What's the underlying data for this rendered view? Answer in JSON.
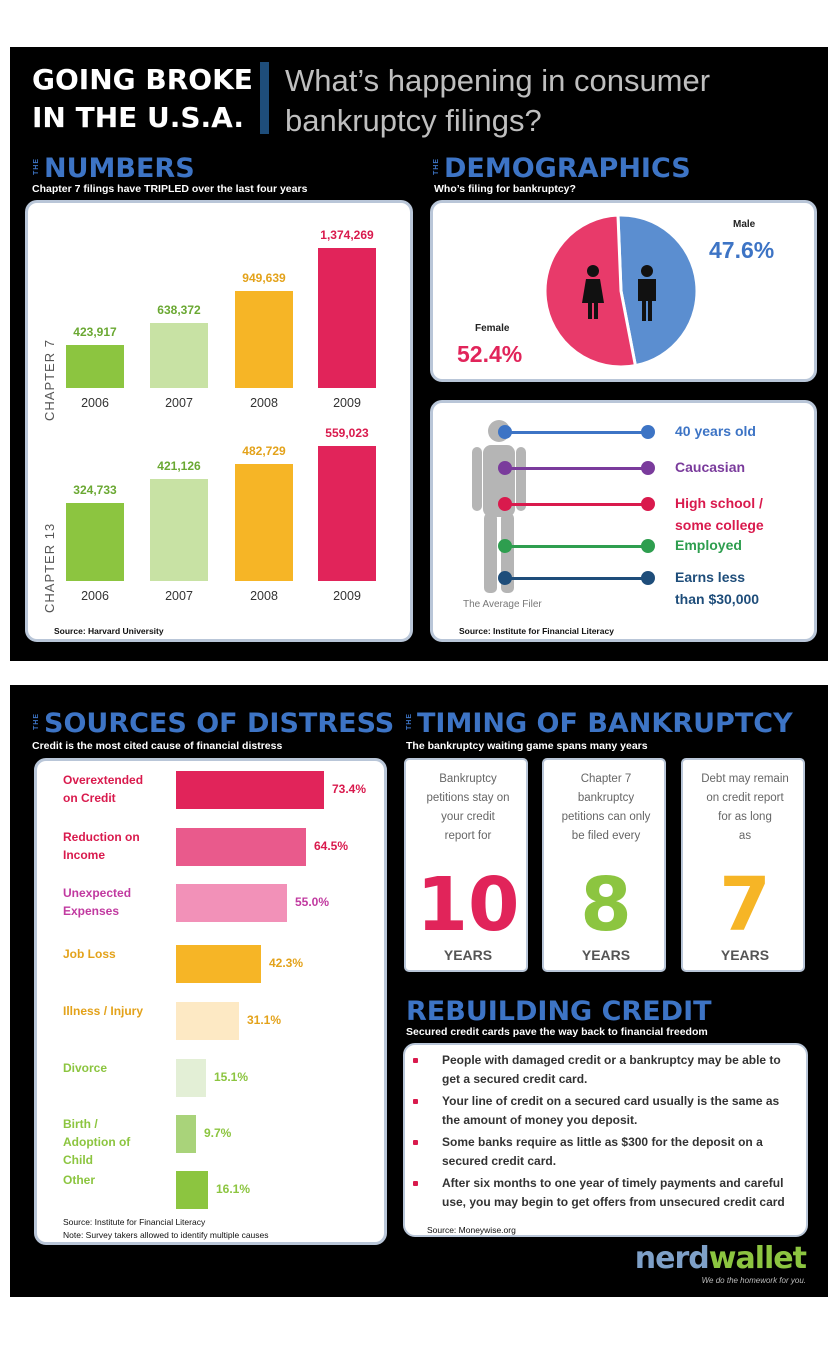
{
  "header": {
    "title_line1": "GOING BROKE",
    "title_line2": "IN THE U.S.A.",
    "subtitle_line1": "What’s happening in consumer",
    "subtitle_line2": "bankruptcy filings?"
  },
  "numbers": {
    "the": "THE",
    "title": "NUMBERS",
    "subtitle": "Chapter 7 filings have TRIPLED over the last four years",
    "source": "Source: Harvard University"
  },
  "demographics": {
    "the": "THE",
    "title": "DEMOGRAPHICS",
    "subtitle": "Who’s filing for bankruptcy?",
    "male_label": "Male",
    "male_pct": "47.6%",
    "female_label": "Female",
    "female_pct": "52.4%",
    "filer_caption": "The Average Filer",
    "source": "Source: Institute for Financial Literacy",
    "filer_traits": [
      {
        "l1": "40 years old",
        "l2": "",
        "color": "#3d74c5"
      },
      {
        "l1": "Caucasian",
        "l2": "",
        "color": "#7a3b9c"
      },
      {
        "l1": "High school /",
        "l2": "some college",
        "color": "#d91a4d"
      },
      {
        "l1": "Employed",
        "l2": "",
        "color": "#2e9e4f"
      },
      {
        "l1": "Earns less",
        "l2": "than $30,000",
        "color": "#1e4d7a"
      }
    ]
  },
  "distress": {
    "the": "THE",
    "title": "SOURCES OF DISTRESS",
    "subtitle": "Credit is the most cited cause of financial distress",
    "source1": "Source: Institute for Financial Literacy",
    "source2": "Note: Survey takers allowed to identify multiple causes"
  },
  "timing": {
    "the": "THE",
    "title": "TIMING OF BANKRUPTCY",
    "subtitle": "The bankruptcy waiting game spans many years",
    "cards": [
      {
        "desc": [
          "Bankruptcy",
          "petitions stay on",
          "your credit",
          "report for"
        ],
        "number": "10",
        "unit": "YEARS",
        "color": "#e1245a"
      },
      {
        "desc": [
          "Chapter 7",
          "bankruptcy",
          "petitions can only",
          "be filed every"
        ],
        "number": "8",
        "unit": "YEARS",
        "color": "#8cc540"
      },
      {
        "desc": [
          "Debt may remain",
          "on credit report",
          "for as long",
          "as"
        ],
        "number": "7",
        "unit": "YEARS",
        "color": "#f6b526"
      }
    ]
  },
  "rebuilding": {
    "title": "REBUILDING CREDIT",
    "subtitle": "Secured credit cards pave the way back to financial freedom",
    "tips": [
      "People with damaged credit or a bankruptcy may be able to get a secured credit card.",
      "Your line of credit on a secured card usually is the same as the amount of money you deposit.",
      "Some banks require as little as $300 for the deposit on a secured credit card.",
      "After six months to one year of timely payments and careful use, you may begin to get offers from unsecured credit card"
    ],
    "source": "Source: Moneywise.org"
  },
  "brand": {
    "nerd": "nerd",
    "wallet": "wallet",
    "tagline": "We do the homework for you."
  },
  "chart_data": [
    {
      "type": "bar",
      "title": "CHAPTER 7",
      "categories": [
        "2006",
        "2007",
        "2008",
        "2009"
      ],
      "values": [
        423917,
        638372,
        949639,
        1374269
      ],
      "labels": [
        "423,917",
        "638,372",
        "949,639",
        "1,374,269"
      ],
      "colors": [
        "#8cc540",
        "#c8e2a4",
        "#f6b526",
        "#e1245a"
      ],
      "label_colors": [
        "#6aa832",
        "#6aa832",
        "#e3a21a",
        "#d91a4d"
      ]
    },
    {
      "type": "bar",
      "title": "CHAPTER 13",
      "categories": [
        "2006",
        "2007",
        "2008",
        "2009"
      ],
      "values": [
        324733,
        421126,
        482729,
        559023
      ],
      "labels": [
        "324,733",
        "421,126",
        "482,729",
        "559,023"
      ],
      "colors": [
        "#8cc540",
        "#c8e2a4",
        "#f6b526",
        "#e1245a"
      ],
      "label_colors": [
        "#6aa832",
        "#6aa832",
        "#e3a21a",
        "#d91a4d"
      ]
    },
    {
      "type": "pie",
      "categories": [
        "Female",
        "Male"
      ],
      "values": [
        52.4,
        47.6
      ],
      "colors": [
        "#e83a6a",
        "#5b8ed0"
      ]
    },
    {
      "type": "bar",
      "orientation": "horizontal",
      "categories": [
        "Overextended on Credit",
        "Reduction on Income",
        "Unexpected Expenses",
        "Job Loss",
        "Illness / Injury",
        "Divorce",
        "Birth / Adoption of Child",
        "Other"
      ],
      "category_lines": [
        [
          "Overextended",
          "on Credit"
        ],
        [
          "Reduction on",
          "Income"
        ],
        [
          "Unexpected",
          "Expenses"
        ],
        [
          "Job Loss"
        ],
        [
          "Illness / Injury"
        ],
        [
          "Divorce"
        ],
        [
          "Birth /",
          "Adoption of",
          "Child"
        ],
        [
          "Other"
        ]
      ],
      "values": [
        73.4,
        64.5,
        55.0,
        42.3,
        31.1,
        15.1,
        9.7,
        16.1
      ],
      "labels": [
        "73.4%",
        "64.5%",
        "55.0%",
        "42.3%",
        "31.1%",
        "15.1%",
        "9.7%",
        "16.1%"
      ],
      "colors": [
        "#e1245a",
        "#e95a8c",
        "#f291b8",
        "#f6b526",
        "#fde9c4",
        "#e3efd6",
        "#a9d37a",
        "#8cc540"
      ],
      "label_colors": [
        "#d91a4d",
        "#d91a4d",
        "#c13aa0",
        "#e3a21a",
        "#e3a21a",
        "#8cc540",
        "#8cc540",
        "#8cc540"
      ]
    }
  ]
}
